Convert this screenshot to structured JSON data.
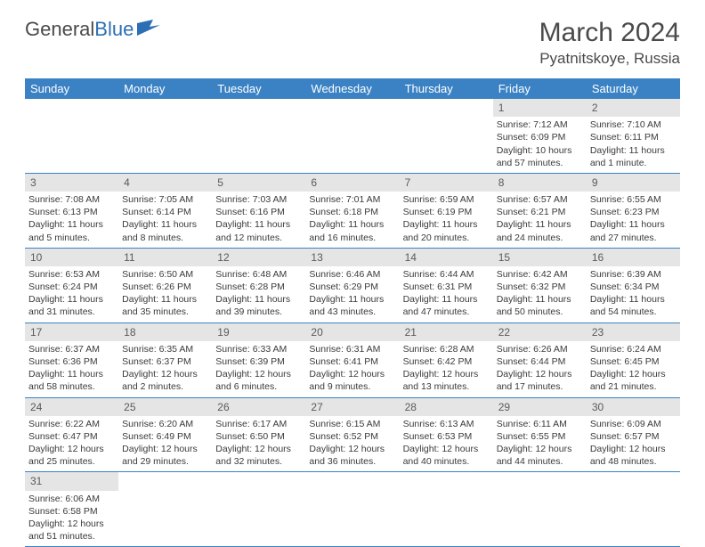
{
  "logo": {
    "text1": "General",
    "text2": "Blue"
  },
  "title": "March 2024",
  "location": "Pyatnitskoye, Russia",
  "colors": {
    "header_bg": "#3b82c4",
    "header_text": "#ffffff",
    "daynum_bg": "#e5e5e5",
    "border": "#3b82c4",
    "text": "#3a3a3a"
  },
  "weekdays": [
    "Sunday",
    "Monday",
    "Tuesday",
    "Wednesday",
    "Thursday",
    "Friday",
    "Saturday"
  ],
  "weeks": [
    [
      null,
      null,
      null,
      null,
      null,
      {
        "n": "1",
        "sr": "Sunrise: 7:12 AM",
        "ss": "Sunset: 6:09 PM",
        "dl1": "Daylight: 10 hours",
        "dl2": "and 57 minutes."
      },
      {
        "n": "2",
        "sr": "Sunrise: 7:10 AM",
        "ss": "Sunset: 6:11 PM",
        "dl1": "Daylight: 11 hours",
        "dl2": "and 1 minute."
      }
    ],
    [
      {
        "n": "3",
        "sr": "Sunrise: 7:08 AM",
        "ss": "Sunset: 6:13 PM",
        "dl1": "Daylight: 11 hours",
        "dl2": "and 5 minutes."
      },
      {
        "n": "4",
        "sr": "Sunrise: 7:05 AM",
        "ss": "Sunset: 6:14 PM",
        "dl1": "Daylight: 11 hours",
        "dl2": "and 8 minutes."
      },
      {
        "n": "5",
        "sr": "Sunrise: 7:03 AM",
        "ss": "Sunset: 6:16 PM",
        "dl1": "Daylight: 11 hours",
        "dl2": "and 12 minutes."
      },
      {
        "n": "6",
        "sr": "Sunrise: 7:01 AM",
        "ss": "Sunset: 6:18 PM",
        "dl1": "Daylight: 11 hours",
        "dl2": "and 16 minutes."
      },
      {
        "n": "7",
        "sr": "Sunrise: 6:59 AM",
        "ss": "Sunset: 6:19 PM",
        "dl1": "Daylight: 11 hours",
        "dl2": "and 20 minutes."
      },
      {
        "n": "8",
        "sr": "Sunrise: 6:57 AM",
        "ss": "Sunset: 6:21 PM",
        "dl1": "Daylight: 11 hours",
        "dl2": "and 24 minutes."
      },
      {
        "n": "9",
        "sr": "Sunrise: 6:55 AM",
        "ss": "Sunset: 6:23 PM",
        "dl1": "Daylight: 11 hours",
        "dl2": "and 27 minutes."
      }
    ],
    [
      {
        "n": "10",
        "sr": "Sunrise: 6:53 AM",
        "ss": "Sunset: 6:24 PM",
        "dl1": "Daylight: 11 hours",
        "dl2": "and 31 minutes."
      },
      {
        "n": "11",
        "sr": "Sunrise: 6:50 AM",
        "ss": "Sunset: 6:26 PM",
        "dl1": "Daylight: 11 hours",
        "dl2": "and 35 minutes."
      },
      {
        "n": "12",
        "sr": "Sunrise: 6:48 AM",
        "ss": "Sunset: 6:28 PM",
        "dl1": "Daylight: 11 hours",
        "dl2": "and 39 minutes."
      },
      {
        "n": "13",
        "sr": "Sunrise: 6:46 AM",
        "ss": "Sunset: 6:29 PM",
        "dl1": "Daylight: 11 hours",
        "dl2": "and 43 minutes."
      },
      {
        "n": "14",
        "sr": "Sunrise: 6:44 AM",
        "ss": "Sunset: 6:31 PM",
        "dl1": "Daylight: 11 hours",
        "dl2": "and 47 minutes."
      },
      {
        "n": "15",
        "sr": "Sunrise: 6:42 AM",
        "ss": "Sunset: 6:32 PM",
        "dl1": "Daylight: 11 hours",
        "dl2": "and 50 minutes."
      },
      {
        "n": "16",
        "sr": "Sunrise: 6:39 AM",
        "ss": "Sunset: 6:34 PM",
        "dl1": "Daylight: 11 hours",
        "dl2": "and 54 minutes."
      }
    ],
    [
      {
        "n": "17",
        "sr": "Sunrise: 6:37 AM",
        "ss": "Sunset: 6:36 PM",
        "dl1": "Daylight: 11 hours",
        "dl2": "and 58 minutes."
      },
      {
        "n": "18",
        "sr": "Sunrise: 6:35 AM",
        "ss": "Sunset: 6:37 PM",
        "dl1": "Daylight: 12 hours",
        "dl2": "and 2 minutes."
      },
      {
        "n": "19",
        "sr": "Sunrise: 6:33 AM",
        "ss": "Sunset: 6:39 PM",
        "dl1": "Daylight: 12 hours",
        "dl2": "and 6 minutes."
      },
      {
        "n": "20",
        "sr": "Sunrise: 6:31 AM",
        "ss": "Sunset: 6:41 PM",
        "dl1": "Daylight: 12 hours",
        "dl2": "and 9 minutes."
      },
      {
        "n": "21",
        "sr": "Sunrise: 6:28 AM",
        "ss": "Sunset: 6:42 PM",
        "dl1": "Daylight: 12 hours",
        "dl2": "and 13 minutes."
      },
      {
        "n": "22",
        "sr": "Sunrise: 6:26 AM",
        "ss": "Sunset: 6:44 PM",
        "dl1": "Daylight: 12 hours",
        "dl2": "and 17 minutes."
      },
      {
        "n": "23",
        "sr": "Sunrise: 6:24 AM",
        "ss": "Sunset: 6:45 PM",
        "dl1": "Daylight: 12 hours",
        "dl2": "and 21 minutes."
      }
    ],
    [
      {
        "n": "24",
        "sr": "Sunrise: 6:22 AM",
        "ss": "Sunset: 6:47 PM",
        "dl1": "Daylight: 12 hours",
        "dl2": "and 25 minutes."
      },
      {
        "n": "25",
        "sr": "Sunrise: 6:20 AM",
        "ss": "Sunset: 6:49 PM",
        "dl1": "Daylight: 12 hours",
        "dl2": "and 29 minutes."
      },
      {
        "n": "26",
        "sr": "Sunrise: 6:17 AM",
        "ss": "Sunset: 6:50 PM",
        "dl1": "Daylight: 12 hours",
        "dl2": "and 32 minutes."
      },
      {
        "n": "27",
        "sr": "Sunrise: 6:15 AM",
        "ss": "Sunset: 6:52 PM",
        "dl1": "Daylight: 12 hours",
        "dl2": "and 36 minutes."
      },
      {
        "n": "28",
        "sr": "Sunrise: 6:13 AM",
        "ss": "Sunset: 6:53 PM",
        "dl1": "Daylight: 12 hours",
        "dl2": "and 40 minutes."
      },
      {
        "n": "29",
        "sr": "Sunrise: 6:11 AM",
        "ss": "Sunset: 6:55 PM",
        "dl1": "Daylight: 12 hours",
        "dl2": "and 44 minutes."
      },
      {
        "n": "30",
        "sr": "Sunrise: 6:09 AM",
        "ss": "Sunset: 6:57 PM",
        "dl1": "Daylight: 12 hours",
        "dl2": "and 48 minutes."
      }
    ],
    [
      {
        "n": "31",
        "sr": "Sunrise: 6:06 AM",
        "ss": "Sunset: 6:58 PM",
        "dl1": "Daylight: 12 hours",
        "dl2": "and 51 minutes."
      },
      null,
      null,
      null,
      null,
      null,
      null
    ]
  ]
}
